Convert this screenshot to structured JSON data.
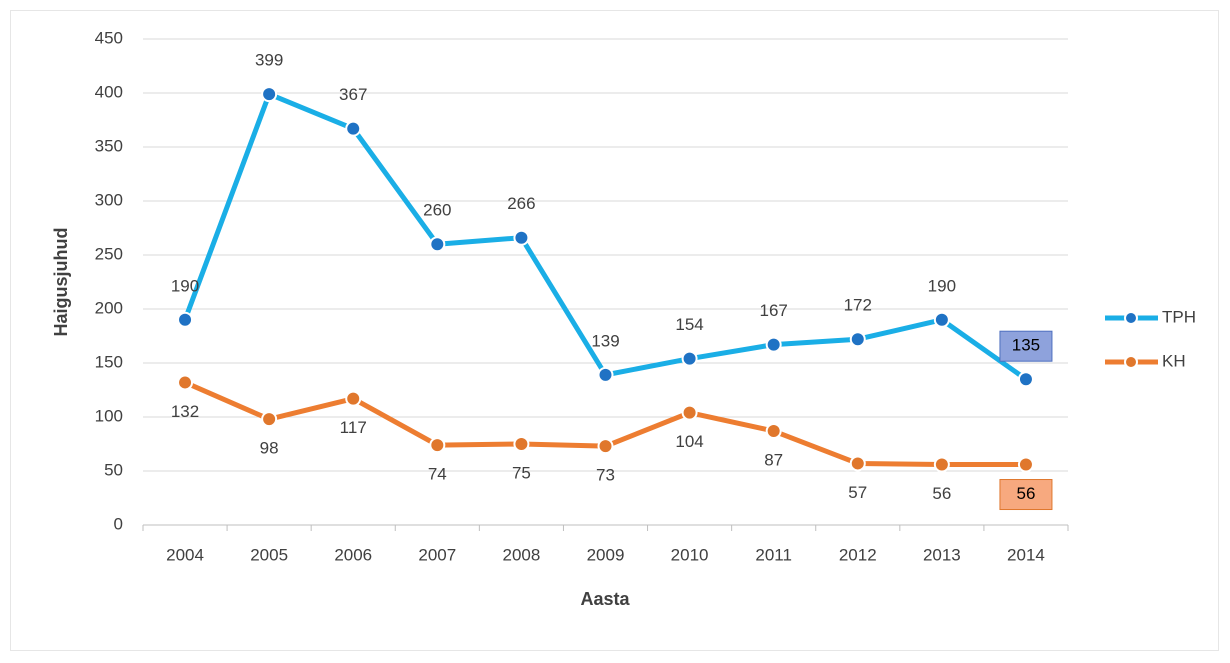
{
  "chart_data": {
    "type": "line",
    "categories": [
      "2004",
      "2005",
      "2006",
      "2007",
      "2008",
      "2009",
      "2010",
      "2011",
      "2012",
      "2013",
      "2014"
    ],
    "series": [
      {
        "name": "TPH",
        "color": "#1aaee6",
        "marker_color": "#1f72c4",
        "values": [
          190,
          399,
          367,
          260,
          266,
          139,
          154,
          167,
          172,
          190,
          135
        ]
      },
      {
        "name": "KH",
        "color": "#ed7d31",
        "marker_color": "#e0772c",
        "values": [
          132,
          98,
          117,
          74,
          75,
          73,
          104,
          87,
          57,
          56,
          56
        ]
      }
    ],
    "x_label": "Aasta",
    "y_label": "Haigusjuhud",
    "ylim": [
      0,
      450
    ],
    "yticks": [
      0,
      50,
      100,
      150,
      200,
      250,
      300,
      350,
      400,
      450
    ],
    "grid": true,
    "legend": "right"
  }
}
